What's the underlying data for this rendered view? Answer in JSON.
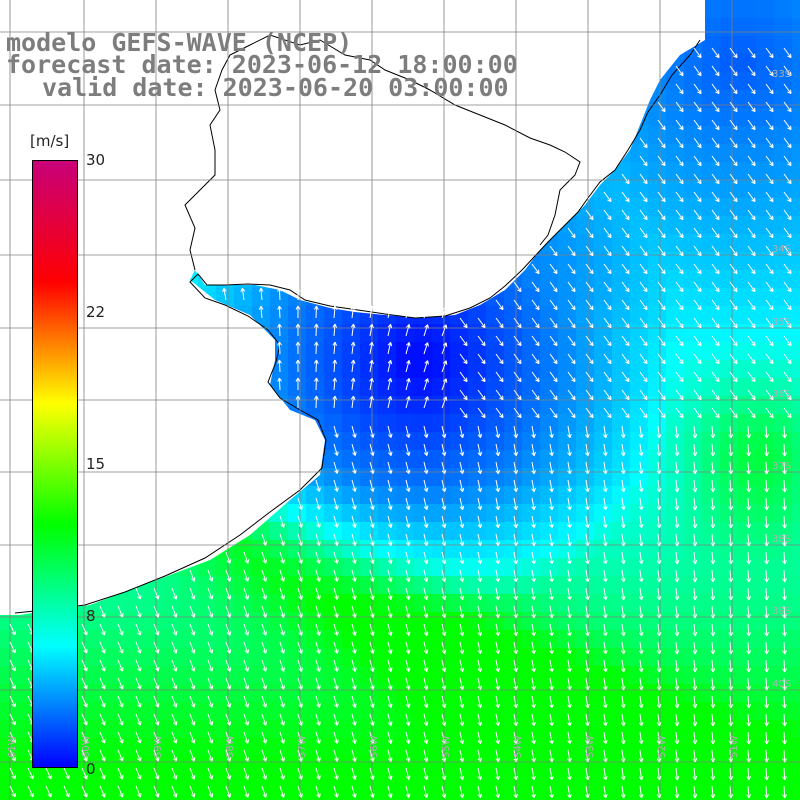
{
  "header": {
    "line1": "modelo GEFS-WAVE (NCEP)",
    "line2": "forecast date: 2023-06-12 18:00:00",
    "line3": "valid date: 2023-06-20 03:00:00"
  },
  "colorbar": {
    "unit": "[m/s]",
    "min": 0,
    "max": 30,
    "ticks": [
      "30",
      "22",
      "15",
      "8",
      "0"
    ],
    "tick_values": [
      30,
      22,
      15,
      8,
      0
    ],
    "colors": [
      "#0000ff",
      "#00ffff",
      "#00ff00",
      "#ffff00",
      "#ff0000",
      "#c8007a"
    ]
  },
  "map": {
    "lat_labels": [
      "33S",
      "34S",
      "35S",
      "36S",
      "37S",
      "38S",
      "39S",
      "40S"
    ],
    "lon_labels": [
      "61W",
      "60W",
      "59W",
      "58W",
      "57W",
      "56W",
      "55W",
      "54W",
      "53W",
      "52W",
      "51W"
    ],
    "land_color": "#ffffff",
    "coast_color": "#000000",
    "grid_color": "#808080",
    "arrow_color": "#ffffff"
  }
}
